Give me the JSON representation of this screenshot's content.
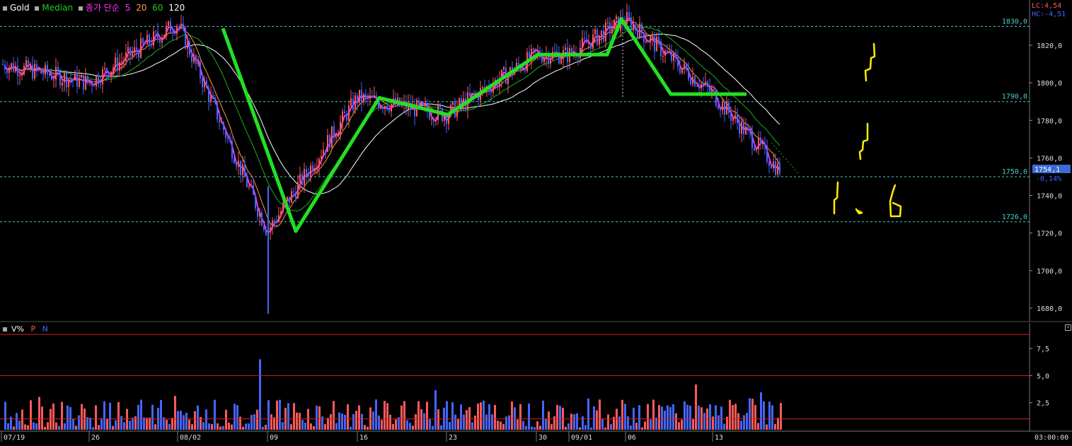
{
  "legend": {
    "symbol": "Gold",
    "median_label": "Median",
    "ma_label": "종가 단순",
    "ma_periods": [
      "5",
      "20",
      "60",
      "120"
    ]
  },
  "indicators": {
    "lc": "LC:4,54",
    "hc": "HC:-4,51"
  },
  "price_panel": {
    "current_price": "1754,1",
    "change_pct": "-0,14%",
    "y_ticks": [
      "1820,0",
      "1800,0",
      "1780,0",
      "1760,0",
      "1740,0",
      "1720,0",
      "1700,0",
      "1680,0"
    ],
    "level_labels": [
      "1830,0",
      "1790,0",
      "1750,0",
      "1726,0"
    ]
  },
  "volume_panel": {
    "label": "V%",
    "p_label": "P",
    "n_label": "N",
    "y_ticks": [
      "7,5",
      "5,0",
      "2,5"
    ]
  },
  "x_axis": {
    "labels": [
      "07/19",
      "26",
      "08/02",
      "09",
      "16",
      "23",
      "30",
      "09/01",
      "06",
      "13"
    ],
    "time": "03:00:00"
  },
  "colors": {
    "up": "#ff5a5a",
    "down": "#4466ff",
    "trend": "#22e022",
    "ma5": "#ff33ff",
    "ma20": "#ff9944",
    "ma60": "#22aa22",
    "ma120": "#ffffff",
    "median": "#22aa22",
    "level": "#4dcccc",
    "annotation": "#ffee00",
    "current_box": "#3b6bd6"
  },
  "chart_data": {
    "type": "candlestick",
    "instrument": "Gold",
    "ylim": [
      1670,
      1842
    ],
    "x": [
      "07/19",
      "26",
      "08/02",
      "09",
      "16",
      "23",
      "30",
      "09/01",
      "06",
      "13"
    ],
    "approx_close_path": [
      {
        "x": "07/19",
        "y": 1810
      },
      {
        "x": "26",
        "y": 1800
      },
      {
        "x": "08/02",
        "y": 1832
      },
      {
        "x": "09",
        "y": 1721
      },
      {
        "x": "16",
        "y": 1792
      },
      {
        "x": "23",
        "y": 1783
      },
      {
        "x": "30",
        "y": 1815
      },
      {
        "x": "09/01",
        "y": 1815
      },
      {
        "x": "06",
        "y": 1834
      },
      {
        "x": "13",
        "y": 1794
      }
    ],
    "last_price": 1754.1,
    "change_pct": -0.14,
    "horizontal_levels": [
      1830,
      1790,
      1750,
      1726
    ],
    "trend_line_points": [
      {
        "x": "08/02",
        "y": 1829
      },
      {
        "x": "09",
        "y": 1721
      },
      {
        "x": "16",
        "y": 1792
      },
      {
        "x": "23",
        "y": 1783
      },
      {
        "x": "30",
        "y": 1815
      },
      {
        "x": "09/01",
        "y": 1815
      },
      {
        "x": "06",
        "y": 1834
      },
      {
        "x": "13",
        "y": 1794
      },
      {
        "x": "13",
        "y": 1794
      }
    ],
    "volume": {
      "ylim": [
        0,
        10
      ],
      "levels": [
        1.0,
        5.0,
        8.8
      ],
      "max": 6.5
    }
  }
}
